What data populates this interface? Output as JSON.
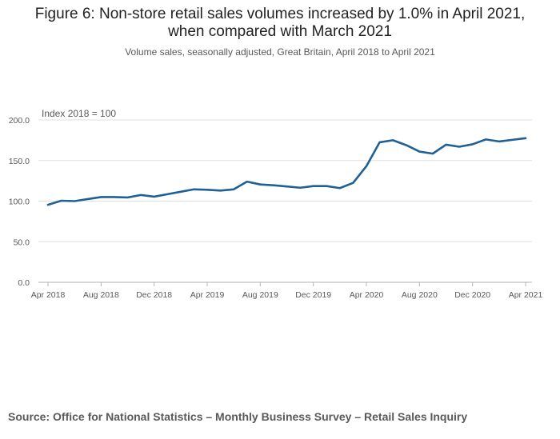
{
  "chart_data": {
    "type": "line",
    "title": "Figure 6: Non-store retail sales volumes increased by 1.0% in April 2021, when compared with March 2021",
    "title_lines": [
      "Figure 6: Non-store retail sales volumes increased by 1.0% in April 2021,",
      "when compared with March 2021"
    ],
    "subtitle": "Volume sales, seasonally adjusted, Great Britain, April 2018 to April 2021",
    "ylabel": "Index 2018 = 100",
    "xlabel": "",
    "ylim": [
      0,
      200
    ],
    "yticks": [
      "0.0",
      "50.0",
      "100.0",
      "150.0",
      "200.0"
    ],
    "yticks_values": [
      0,
      50,
      100,
      150,
      200
    ],
    "xtick_labels": [
      "Apr 2018",
      "Aug 2018",
      "Dec 2018",
      "Apr 2019",
      "Aug 2019",
      "Dec 2019",
      "Apr 2020",
      "Aug 2020",
      "Dec 2020",
      "Apr 2021"
    ],
    "grid": true,
    "line_color": "#206095",
    "categories": [
      "Apr 2018",
      "May 2018",
      "Jun 2018",
      "Jul 2018",
      "Aug 2018",
      "Sep 2018",
      "Oct 2018",
      "Nov 2018",
      "Dec 2018",
      "Jan 2019",
      "Feb 2019",
      "Mar 2019",
      "Apr 2019",
      "May 2019",
      "Jun 2019",
      "Jul 2019",
      "Aug 2019",
      "Sep 2019",
      "Oct 2019",
      "Nov 2019",
      "Dec 2019",
      "Jan 2020",
      "Feb 2020",
      "Mar 2020",
      "Apr 2020",
      "May 2020",
      "Jun 2020",
      "Jul 2020",
      "Aug 2020",
      "Sep 2020",
      "Oct 2020",
      "Nov 2020",
      "Dec 2020",
      "Jan 2021",
      "Feb 2021",
      "Mar 2021",
      "Apr 2021"
    ],
    "values": [
      95.5,
      100.5,
      100.0,
      102.5,
      105.0,
      105.0,
      104.5,
      107.5,
      105.5,
      108.5,
      111.5,
      114.5,
      114.0,
      113.0,
      114.5,
      124.0,
      120.5,
      119.5,
      118.0,
      116.5,
      118.5,
      118.5,
      116.0,
      122.5,
      143.0,
      172.5,
      175.0,
      169.0,
      161.0,
      158.5,
      169.5,
      167.0,
      170.0,
      176.0,
      173.5,
      175.5,
      177.5
    ]
  },
  "source": "Source: Office for National Statistics – Monthly Business Survey – Retail Sales Inquiry"
}
